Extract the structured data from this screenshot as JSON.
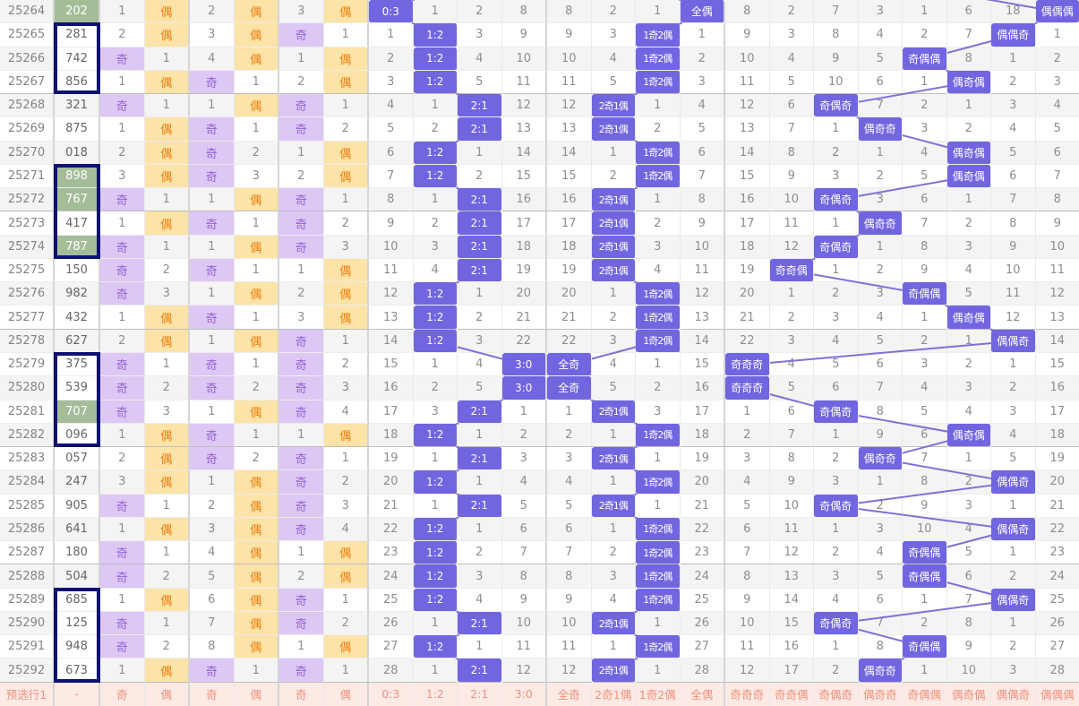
{
  "colors": {
    "hit_bg": "#7165e0",
    "hit_text": "#ffffff",
    "odd_bg": "#ddc7f4",
    "odd_text": "#9263d6",
    "even_bg": "#fce3a7",
    "even_text": "#ee7e0e",
    "line": "#7d72d8",
    "green_bg": "#a5bc99",
    "box_border": "#0d1173",
    "footer_bg": "#fdeae4",
    "footer_text": "#f0917f",
    "row_alt": "#f4f4f4"
  },
  "sep_cols": [
    1,
    3,
    5,
    9,
    13
  ],
  "group_ends": [
    3,
    8,
    13,
    18,
    23,
    28
  ],
  "boxes": [
    {
      "start": 1,
      "end": 3
    },
    {
      "start": 7,
      "end": 10
    },
    {
      "start": 15,
      "end": 18
    },
    {
      "start": 25,
      "end": 28
    }
  ],
  "line_groups": [
    {
      "start": 6,
      "end": 9,
      "prev_col": 7
    },
    {
      "start": 10,
      "end": 13,
      "prev_col": 12
    },
    {
      "start": 14,
      "end": 21,
      "prev_col": 18
    }
  ],
  "footer": {
    "label": "预选行1",
    "values": [
      "-",
      "奇",
      "偶",
      "奇",
      "偶",
      "奇",
      "偶",
      "0:3",
      "1:2",
      "2:1",
      "3:0",
      "全奇",
      "2奇1偶",
      "1奇2偶",
      "全偶",
      "奇奇奇",
      "奇奇偶",
      "奇偶奇",
      "偶奇奇",
      "奇偶偶",
      "偶奇偶",
      "偶偶奇",
      "偶偶偶"
    ]
  },
  "rows": [
    {
      "period": "25264",
      "num": "202",
      "green": true,
      "cells": [
        "1",
        "偶",
        "2",
        "偶",
        "3",
        "偶",
        "0:3",
        "1",
        "2",
        "8",
        "8",
        "2",
        "1",
        "全偶",
        "8",
        "2",
        "7",
        "3",
        "1",
        "6",
        "18",
        "偶偶偶"
      ]
    },
    {
      "period": "25265",
      "num": "281",
      "green": false,
      "cells": [
        "2",
        "偶",
        "3",
        "偶",
        "奇",
        "1",
        "1",
        "1:2",
        "3",
        "9",
        "9",
        "3",
        "1奇2偶",
        "1",
        "9",
        "3",
        "8",
        "4",
        "2",
        "7",
        "偶偶奇",
        "1"
      ]
    },
    {
      "period": "25266",
      "num": "742",
      "green": false,
      "cells": [
        "奇",
        "1",
        "4",
        "偶",
        "1",
        "偶",
        "2",
        "1:2",
        "4",
        "10",
        "10",
        "4",
        "1奇2偶",
        "2",
        "10",
        "4",
        "9",
        "5",
        "奇偶偶",
        "8",
        "1",
        "2"
      ]
    },
    {
      "period": "25267",
      "num": "856",
      "green": false,
      "cells": [
        "1",
        "偶",
        "奇",
        "1",
        "2",
        "偶",
        "3",
        "1:2",
        "5",
        "11",
        "11",
        "5",
        "1奇2偶",
        "3",
        "11",
        "5",
        "10",
        "6",
        "1",
        "偶奇偶",
        "2",
        "3"
      ]
    },
    {
      "period": "25268",
      "num": "321",
      "green": false,
      "cells": [
        "奇",
        "1",
        "1",
        "偶",
        "奇",
        "1",
        "4",
        "1",
        "2:1",
        "12",
        "12",
        "2奇1偶",
        "1",
        "4",
        "12",
        "6",
        "奇偶奇",
        "7",
        "2",
        "1",
        "3",
        "4"
      ]
    },
    {
      "period": "25269",
      "num": "875",
      "green": false,
      "cells": [
        "1",
        "偶",
        "奇",
        "1",
        "奇",
        "2",
        "5",
        "2",
        "2:1",
        "13",
        "13",
        "2奇1偶",
        "2",
        "5",
        "13",
        "7",
        "1",
        "偶奇奇",
        "3",
        "2",
        "4",
        "5"
      ]
    },
    {
      "period": "25270",
      "num": "018",
      "green": false,
      "cells": [
        "2",
        "偶",
        "奇",
        "2",
        "1",
        "偶",
        "6",
        "1:2",
        "1",
        "14",
        "14",
        "1",
        "1奇2偶",
        "6",
        "14",
        "8",
        "2",
        "1",
        "4",
        "偶奇偶",
        "5",
        "6"
      ]
    },
    {
      "period": "25271",
      "num": "898",
      "green": true,
      "cells": [
        "3",
        "偶",
        "奇",
        "3",
        "2",
        "偶",
        "7",
        "1:2",
        "2",
        "15",
        "15",
        "2",
        "1奇2偶",
        "7",
        "15",
        "9",
        "3",
        "2",
        "5",
        "偶奇偶",
        "6",
        "7"
      ]
    },
    {
      "period": "25272",
      "num": "767",
      "green": true,
      "cells": [
        "奇",
        "1",
        "1",
        "偶",
        "奇",
        "1",
        "8",
        "1",
        "2:1",
        "16",
        "16",
        "2奇1偶",
        "1",
        "8",
        "16",
        "10",
        "奇偶奇",
        "3",
        "6",
        "1",
        "7",
        "8"
      ]
    },
    {
      "period": "25273",
      "num": "417",
      "green": false,
      "cells": [
        "1",
        "偶",
        "奇",
        "1",
        "奇",
        "2",
        "9",
        "2",
        "2:1",
        "17",
        "17",
        "2奇1偶",
        "2",
        "9",
        "17",
        "11",
        "1",
        "偶奇奇",
        "7",
        "2",
        "8",
        "9"
      ]
    },
    {
      "period": "25274",
      "num": "787",
      "green": true,
      "cells": [
        "奇",
        "1",
        "1",
        "偶",
        "奇",
        "3",
        "10",
        "3",
        "2:1",
        "18",
        "18",
        "2奇1偶",
        "3",
        "10",
        "18",
        "12",
        "奇偶奇",
        "1",
        "8",
        "3",
        "9",
        "10"
      ]
    },
    {
      "period": "25275",
      "num": "150",
      "green": false,
      "cells": [
        "奇",
        "2",
        "奇",
        "1",
        "1",
        "偶",
        "11",
        "4",
        "2:1",
        "19",
        "19",
        "2奇1偶",
        "4",
        "11",
        "19",
        "奇奇偶",
        "1",
        "2",
        "9",
        "4",
        "10",
        "11"
      ]
    },
    {
      "period": "25276",
      "num": "982",
      "green": false,
      "cells": [
        "奇",
        "3",
        "1",
        "偶",
        "2",
        "偶",
        "12",
        "1:2",
        "1",
        "20",
        "20",
        "1",
        "1奇2偶",
        "12",
        "20",
        "1",
        "2",
        "3",
        "奇偶偶",
        "5",
        "11",
        "12"
      ]
    },
    {
      "period": "25277",
      "num": "432",
      "green": false,
      "cells": [
        "1",
        "偶",
        "奇",
        "1",
        "3",
        "偶",
        "13",
        "1:2",
        "2",
        "21",
        "21",
        "2",
        "1奇2偶",
        "13",
        "21",
        "2",
        "3",
        "4",
        "1",
        "偶奇偶",
        "12",
        "13"
      ]
    },
    {
      "period": "25278",
      "num": "627",
      "green": false,
      "cells": [
        "2",
        "偶",
        "1",
        "偶",
        "奇",
        "1",
        "14",
        "1:2",
        "3",
        "22",
        "22",
        "3",
        "1奇2偶",
        "14",
        "22",
        "3",
        "4",
        "5",
        "2",
        "1",
        "偶偶奇",
        "14"
      ]
    },
    {
      "period": "25279",
      "num": "375",
      "green": false,
      "cells": [
        "奇",
        "1",
        "奇",
        "1",
        "奇",
        "2",
        "15",
        "1",
        "4",
        "3:0",
        "全奇",
        "4",
        "1",
        "15",
        "奇奇奇",
        "4",
        "5",
        "6",
        "3",
        "2",
        "1",
        "15"
      ]
    },
    {
      "period": "25280",
      "num": "539",
      "green": false,
      "cells": [
        "奇",
        "2",
        "奇",
        "2",
        "奇",
        "3",
        "16",
        "2",
        "5",
        "3:0",
        "全奇",
        "5",
        "2",
        "16",
        "奇奇奇",
        "5",
        "6",
        "7",
        "4",
        "3",
        "2",
        "16"
      ]
    },
    {
      "period": "25281",
      "num": "707",
      "green": true,
      "cells": [
        "奇",
        "3",
        "1",
        "偶",
        "奇",
        "4",
        "17",
        "3",
        "2:1",
        "1",
        "1",
        "2奇1偶",
        "3",
        "17",
        "1",
        "6",
        "奇偶奇",
        "8",
        "5",
        "4",
        "3",
        "17"
      ]
    },
    {
      "period": "25282",
      "num": "096",
      "green": false,
      "cells": [
        "1",
        "偶",
        "奇",
        "1",
        "1",
        "偶",
        "18",
        "1:2",
        "1",
        "2",
        "2",
        "1",
        "1奇2偶",
        "18",
        "2",
        "7",
        "1",
        "9",
        "6",
        "偶奇偶",
        "4",
        "18"
      ]
    },
    {
      "period": "25283",
      "num": "057",
      "green": false,
      "cells": [
        "2",
        "偶",
        "奇",
        "2",
        "奇",
        "1",
        "19",
        "1",
        "2:1",
        "3",
        "3",
        "2奇1偶",
        "1",
        "19",
        "3",
        "8",
        "2",
        "偶奇奇",
        "7",
        "1",
        "5",
        "19"
      ]
    },
    {
      "period": "25284",
      "num": "247",
      "green": false,
      "cells": [
        "3",
        "偶",
        "1",
        "偶",
        "奇",
        "2",
        "20",
        "1:2",
        "1",
        "4",
        "4",
        "1",
        "1奇2偶",
        "20",
        "4",
        "9",
        "3",
        "1",
        "8",
        "2",
        "偶偶奇",
        "20"
      ]
    },
    {
      "period": "25285",
      "num": "905",
      "green": false,
      "cells": [
        "奇",
        "1",
        "2",
        "偶",
        "奇",
        "3",
        "21",
        "1",
        "2:1",
        "5",
        "5",
        "2奇1偶",
        "1",
        "21",
        "5",
        "10",
        "奇偶奇",
        "2",
        "9",
        "3",
        "1",
        "21"
      ]
    },
    {
      "period": "25286",
      "num": "641",
      "green": false,
      "cells": [
        "1",
        "偶",
        "3",
        "偶",
        "奇",
        "4",
        "22",
        "1:2",
        "1",
        "6",
        "6",
        "1",
        "1奇2偶",
        "22",
        "6",
        "11",
        "1",
        "3",
        "10",
        "4",
        "偶偶奇",
        "22"
      ]
    },
    {
      "period": "25287",
      "num": "180",
      "green": false,
      "cells": [
        "奇",
        "1",
        "4",
        "偶",
        "1",
        "偶",
        "23",
        "1:2",
        "2",
        "7",
        "7",
        "2",
        "1奇2偶",
        "23",
        "7",
        "12",
        "2",
        "4",
        "奇偶偶",
        "5",
        "1",
        "23"
      ]
    },
    {
      "period": "25288",
      "num": "504",
      "green": false,
      "cells": [
        "奇",
        "2",
        "5",
        "偶",
        "2",
        "偶",
        "24",
        "1:2",
        "3",
        "8",
        "8",
        "3",
        "1奇2偶",
        "24",
        "8",
        "13",
        "3",
        "5",
        "奇偶偶",
        "6",
        "2",
        "24"
      ]
    },
    {
      "period": "25289",
      "num": "685",
      "green": false,
      "cells": [
        "1",
        "偶",
        "6",
        "偶",
        "奇",
        "1",
        "25",
        "1:2",
        "4",
        "9",
        "9",
        "4",
        "1奇2偶",
        "25",
        "9",
        "14",
        "4",
        "6",
        "1",
        "7",
        "偶偶奇",
        "25"
      ]
    },
    {
      "period": "25290",
      "num": "125",
      "green": false,
      "cells": [
        "奇",
        "1",
        "7",
        "偶",
        "奇",
        "2",
        "26",
        "1",
        "2:1",
        "10",
        "10",
        "2奇1偶",
        "1",
        "26",
        "10",
        "15",
        "奇偶奇",
        "7",
        "2",
        "8",
        "1",
        "26"
      ]
    },
    {
      "period": "25291",
      "num": "948",
      "green": false,
      "cells": [
        "奇",
        "2",
        "8",
        "偶",
        "1",
        "偶",
        "27",
        "1:2",
        "1",
        "11",
        "11",
        "1",
        "1奇2偶",
        "27",
        "11",
        "16",
        "1",
        "8",
        "奇偶偶",
        "9",
        "2",
        "27"
      ]
    },
    {
      "period": "25292",
      "num": "673",
      "green": false,
      "cells": [
        "1",
        "偶",
        "奇",
        "1",
        "奇",
        "1",
        "28",
        "1",
        "2:1",
        "12",
        "12",
        "2奇1偶",
        "1",
        "28",
        "12",
        "17",
        "2",
        "偶奇奇",
        "1",
        "10",
        "3",
        "28"
      ]
    }
  ]
}
